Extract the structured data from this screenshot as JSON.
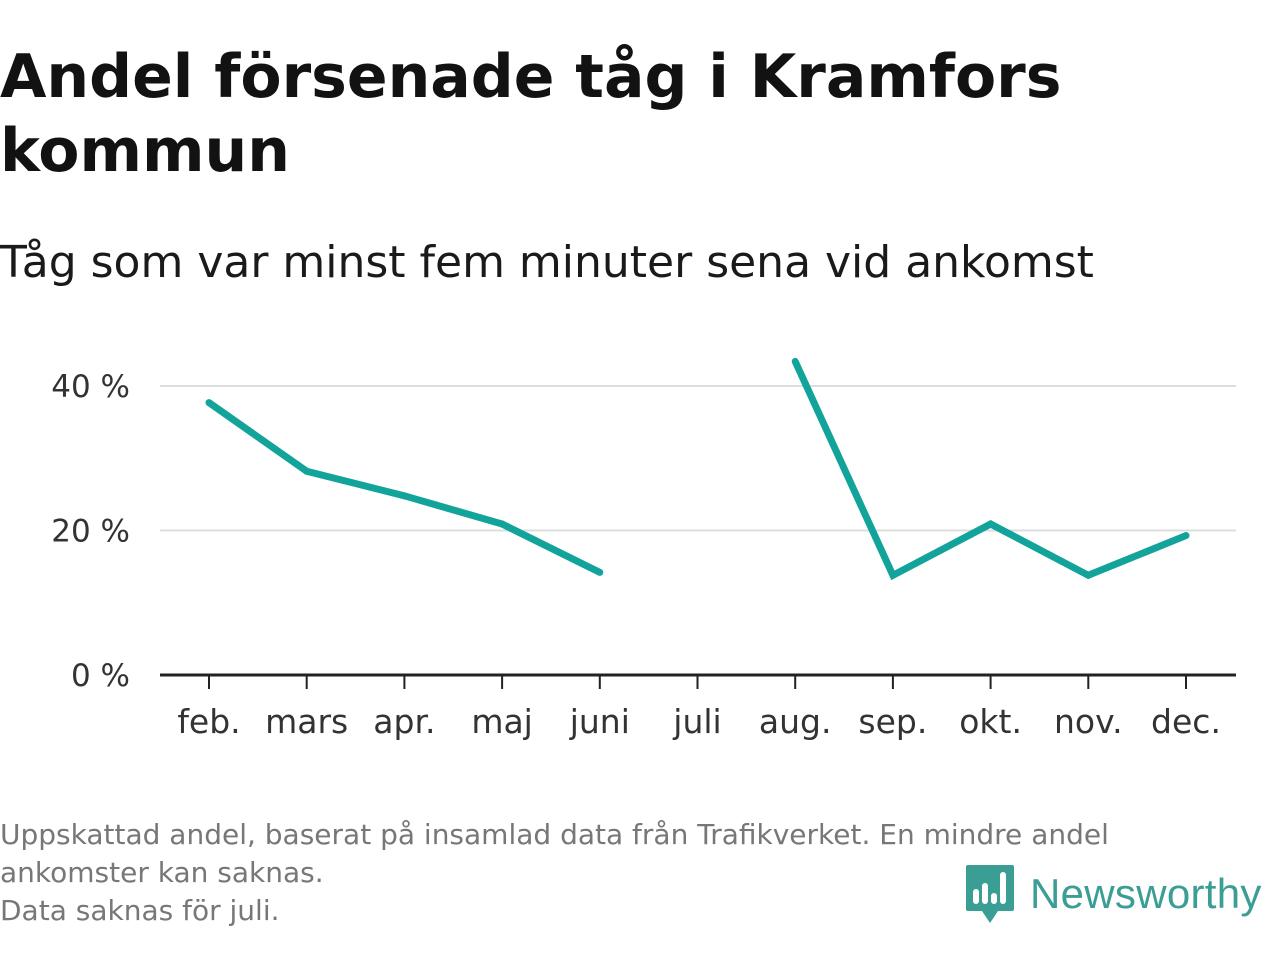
{
  "title": "Andel försenade tåg i Kramfors kommun",
  "subtitle": "Tåg som var minst fem minuter sena vid ankomst",
  "footnote": {
    "line1": "Uppskattad andel, baserat på insamlad data från Trafikverket. En mindre andel",
    "line2": "ankomster kan saknas.",
    "line3": "Data saknas för juli."
  },
  "brand": {
    "name": "Newsworthy",
    "logo_icon": "newsworthy-logo-icon",
    "color": "#3a9e94"
  },
  "chart_data": {
    "type": "line",
    "categories": [
      "feb.",
      "mars",
      "apr.",
      "maj",
      "juni",
      "juli",
      "aug.",
      "sep.",
      "okt.",
      "nov.",
      "dec."
    ],
    "series": [
      {
        "values": [
          37.7,
          28.2,
          24.8,
          20.9,
          14.2,
          null,
          43.4,
          13.8,
          20.9,
          13.8,
          19.3
        ]
      }
    ],
    "yticks": [
      0,
      20,
      40
    ],
    "ytick_labels": [
      "0 %",
      "20 %",
      "40 %"
    ],
    "ylim": [
      0,
      40
    ],
    "grid": true,
    "line_color": "#12a39a",
    "grid_color": "#dddddd"
  }
}
